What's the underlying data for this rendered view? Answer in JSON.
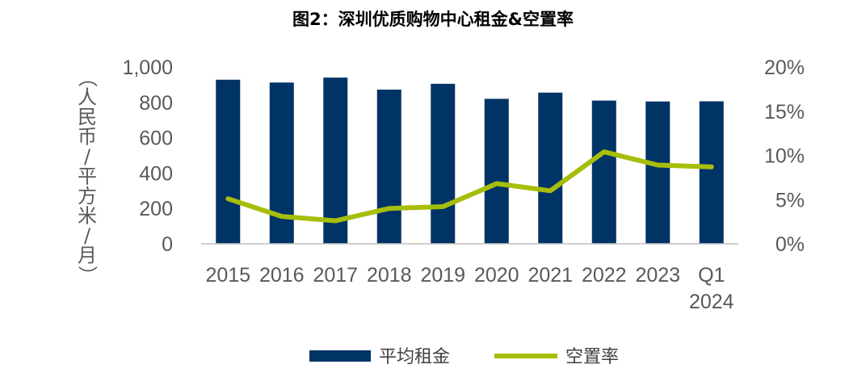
{
  "chart_data": {
    "type": "bar+line",
    "title": "图2：深圳优质购物中心租金&空置率",
    "ylabel": "（人民币/平方米/月）",
    "categories": [
      "2015",
      "2016",
      "2017",
      "2018",
      "2019",
      "2020",
      "2021",
      "2022",
      "2023",
      "Q1 2024"
    ],
    "series": [
      {
        "name": "平均租金",
        "type": "bar",
        "axis": "left",
        "color": "#003366",
        "values": [
          928,
          912,
          940,
          872,
          905,
          820,
          855,
          810,
          805,
          806
        ]
      },
      {
        "name": "空置率",
        "type": "line",
        "axis": "right",
        "color": "#A6BE0A",
        "values": [
          5.1,
          3.1,
          2.6,
          4.0,
          4.2,
          6.8,
          6.0,
          10.4,
          8.9,
          8.7
        ]
      }
    ],
    "y_left": {
      "min": 0,
      "max": 1000,
      "ticks": [
        "0",
        "200",
        "400",
        "600",
        "800",
        "1,000"
      ]
    },
    "y_right": {
      "min": 0,
      "max": 20,
      "ticks": [
        "0%",
        "5%",
        "10%",
        "15%",
        "20%"
      ]
    },
    "legend_position": "bottom",
    "grid": false
  }
}
